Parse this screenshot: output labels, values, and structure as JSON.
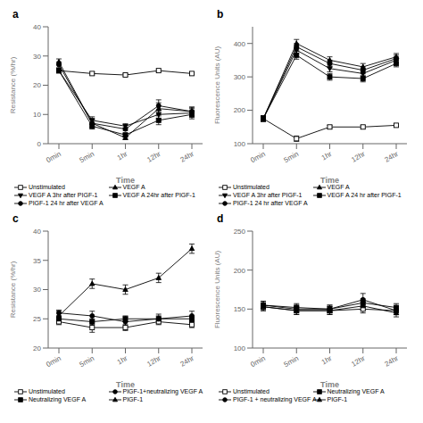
{
  "chart_data": [
    {
      "type": "line",
      "title": "a",
      "xlabel": "Time",
      "ylabel": "Resistance (%/hr)",
      "categories": [
        "0min",
        "5min",
        "1hr",
        "12hr",
        "24hr"
      ],
      "ylim": [
        0,
        40
      ],
      "yticks": [
        0,
        10,
        20,
        30,
        40
      ],
      "grid": false,
      "legend": "bottom",
      "color": "black",
      "series": [
        {
          "name": "Unstimulated",
          "values": [
            25,
            24,
            23.5,
            25,
            24
          ],
          "yerr": [
            0.5,
            0.5,
            0.5,
            0.5,
            0.5
          ],
          "marker": "open_square"
        },
        {
          "name": "VEGF A",
          "values": [
            28,
            7,
            2,
            12,
            11
          ],
          "yerr": [
            1.0,
            1.5,
            0.5,
            2.0,
            1.5
          ],
          "marker": "triangle_up"
        },
        {
          "name": "VEGF A 3hr after PIGF-1",
          "values": [
            25,
            8,
            6,
            10,
            10.5
          ],
          "yerr": [
            0.8,
            1.2,
            0.8,
            1.5,
            1.5
          ],
          "marker": "triangle_down"
        },
        {
          "name": "VEGF A 24hr after PIGF-1",
          "values": [
            25,
            6,
            3,
            8,
            10
          ],
          "yerr": [
            0.8,
            1.0,
            0.5,
            1.5,
            1.5
          ],
          "marker": "square"
        },
        {
          "name": "PIGF-1 24 hr after VEGF A",
          "values": [
            27,
            7,
            5,
            13,
            11
          ],
          "yerr": [
            1.0,
            1.2,
            0.5,
            2.0,
            1.5
          ],
          "marker": "circle"
        }
      ]
    },
    {
      "type": "line",
      "title": "b",
      "xlabel": "Time",
      "ylabel": "Fluorescence Units (AU)",
      "categories": [
        "0min",
        "5min",
        "1hr",
        "12hr",
        "24hr"
      ],
      "ylim": [
        100,
        450
      ],
      "yticks": [
        100,
        200,
        300,
        400
      ],
      "grid": false,
      "legend": "bottom",
      "color": "black",
      "series": [
        {
          "name": "Unstimulated",
          "values": [
            175,
            115,
            150,
            150,
            155
          ],
          "yerr": [
            5,
            8,
            5,
            5,
            5
          ],
          "marker": "open_square"
        },
        {
          "name": "VEGF A",
          "values": [
            175,
            400,
            350,
            330,
            360
          ],
          "yerr": [
            8,
            12,
            10,
            10,
            10
          ],
          "marker": "triangle_up"
        },
        {
          "name": "VEGF A 3hr after PIGF-1",
          "values": [
            175,
            380,
            325,
            310,
            350
          ],
          "yerr": [
            8,
            10,
            10,
            10,
            10
          ],
          "marker": "triangle_down"
        },
        {
          "name": "VEGF A 24 hr after PIGF-1",
          "values": [
            175,
            365,
            300,
            295,
            340
          ],
          "yerr": [
            8,
            12,
            10,
            10,
            10
          ],
          "marker": "square"
        },
        {
          "name": "PIGF-1 24 hr after VEGF A",
          "values": [
            175,
            390,
            340,
            320,
            355
          ],
          "yerr": [
            8,
            10,
            10,
            10,
            10
          ],
          "marker": "circle"
        }
      ]
    },
    {
      "type": "line",
      "title": "c",
      "xlabel": "Time",
      "ylabel": "Resistance (%/hr)",
      "categories": [
        "0min",
        "5min",
        "1hr",
        "12hr",
        "24hr"
      ],
      "ylim": [
        20,
        40
      ],
      "yticks": [
        20,
        25,
        30,
        35,
        40
      ],
      "grid": false,
      "legend": "bottom",
      "color": "black",
      "series": [
        {
          "name": "Unstimulated",
          "values": [
            24.5,
            23.5,
            23.5,
            24.5,
            24
          ],
          "yerr": [
            0.5,
            0.8,
            0.5,
            0.5,
            0.5
          ],
          "marker": "open_square"
        },
        {
          "name": "PIGF-1+neutralizing VEGF A",
          "values": [
            26,
            25.5,
            24.5,
            25,
            25.5
          ],
          "yerr": [
            0.5,
            0.8,
            0.8,
            0.8,
            0.8
          ],
          "marker": "circle"
        },
        {
          "name": "Neutralizing VEGF A",
          "values": [
            25,
            24.5,
            25,
            25,
            25
          ],
          "yerr": [
            0.5,
            0.5,
            0.5,
            0.5,
            0.5
          ],
          "marker": "square"
        },
        {
          "name": "PIGF-1",
          "values": [
            25.5,
            31,
            30,
            32,
            37
          ],
          "yerr": [
            0.8,
            0.8,
            0.8,
            0.8,
            0.8
          ],
          "marker": "triangle_up"
        }
      ]
    },
    {
      "type": "line",
      "title": "d",
      "xlabel": "Time",
      "ylabel": "Fluorescence Units (AU)",
      "categories": [
        "0min",
        "5min",
        "1hr",
        "12hr",
        "24hr"
      ],
      "ylim": [
        100,
        250
      ],
      "yticks": [
        100,
        150,
        200,
        250
      ],
      "grid": false,
      "legend": "bottom",
      "color": "black",
      "series": [
        {
          "name": "Unstimulated",
          "values": [
            153,
            148,
            148,
            150,
            148
          ],
          "yerr": [
            5,
            5,
            5,
            5,
            5
          ],
          "marker": "open_square"
        },
        {
          "name": "Neutralizing VEGF A",
          "values": [
            155,
            152,
            150,
            158,
            152
          ],
          "yerr": [
            5,
            5,
            5,
            5,
            5
          ],
          "marker": "square"
        },
        {
          "name": "PIGF-1 + neutralizing VEGF A",
          "values": [
            155,
            150,
            150,
            162,
            148
          ],
          "yerr": [
            5,
            5,
            5,
            8,
            5
          ],
          "marker": "circle"
        },
        {
          "name": "PIGF-1",
          "values": [
            153,
            148,
            148,
            154,
            145
          ],
          "yerr": [
            5,
            5,
            5,
            5,
            5
          ],
          "marker": "triangle_up"
        }
      ]
    }
  ]
}
